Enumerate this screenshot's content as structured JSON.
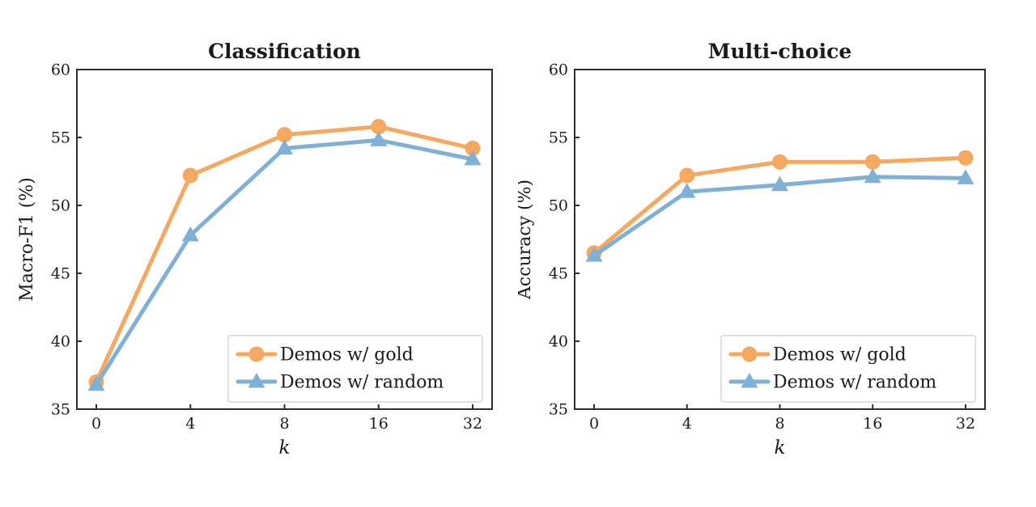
{
  "figure": {
    "background": "#ffffff"
  },
  "colors": {
    "axis": "#2e2e2e",
    "text": "#1b1b1b",
    "legend_border": "#d5d5d5",
    "legend_bg": "#ffffff",
    "gold": "#F4A860",
    "random_blue": "#7FB0D6"
  },
  "chart_data": [
    {
      "type": "line",
      "title": "Classification",
      "xlabel": "k",
      "ylabel": "Macro-F1 (%)",
      "x_scale": "categorical",
      "categories": [
        "0",
        "4",
        "8",
        "16",
        "32"
      ],
      "ylim": [
        35,
        60
      ],
      "yticks": [
        35,
        40,
        45,
        50,
        55,
        60
      ],
      "grid": false,
      "legend_position": "lower right",
      "series": [
        {
          "name": "Demos w/ gold",
          "marker": "circle",
          "color": "#F4A860",
          "values": [
            37.0,
            52.2,
            55.2,
            55.8,
            54.2
          ]
        },
        {
          "name": "Demos w/ random",
          "marker": "triangle",
          "color": "#7FB0D6",
          "values": [
            36.8,
            47.8,
            54.2,
            54.8,
            53.4
          ]
        }
      ]
    },
    {
      "type": "line",
      "title": "Multi-choice",
      "xlabel": "k",
      "ylabel": "Accuracy (%)",
      "x_scale": "categorical",
      "categories": [
        "0",
        "4",
        "8",
        "16",
        "32"
      ],
      "ylim": [
        35,
        60
      ],
      "yticks": [
        35,
        40,
        45,
        50,
        55,
        60
      ],
      "grid": false,
      "legend_position": "lower right",
      "series": [
        {
          "name": "Demos w/ gold",
          "marker": "circle",
          "color": "#F4A860",
          "values": [
            46.5,
            52.2,
            53.2,
            53.2,
            53.5
          ]
        },
        {
          "name": "Demos w/ random",
          "marker": "triangle",
          "color": "#7FB0D6",
          "values": [
            46.3,
            51.0,
            51.5,
            52.1,
            52.0
          ]
        }
      ]
    }
  ]
}
